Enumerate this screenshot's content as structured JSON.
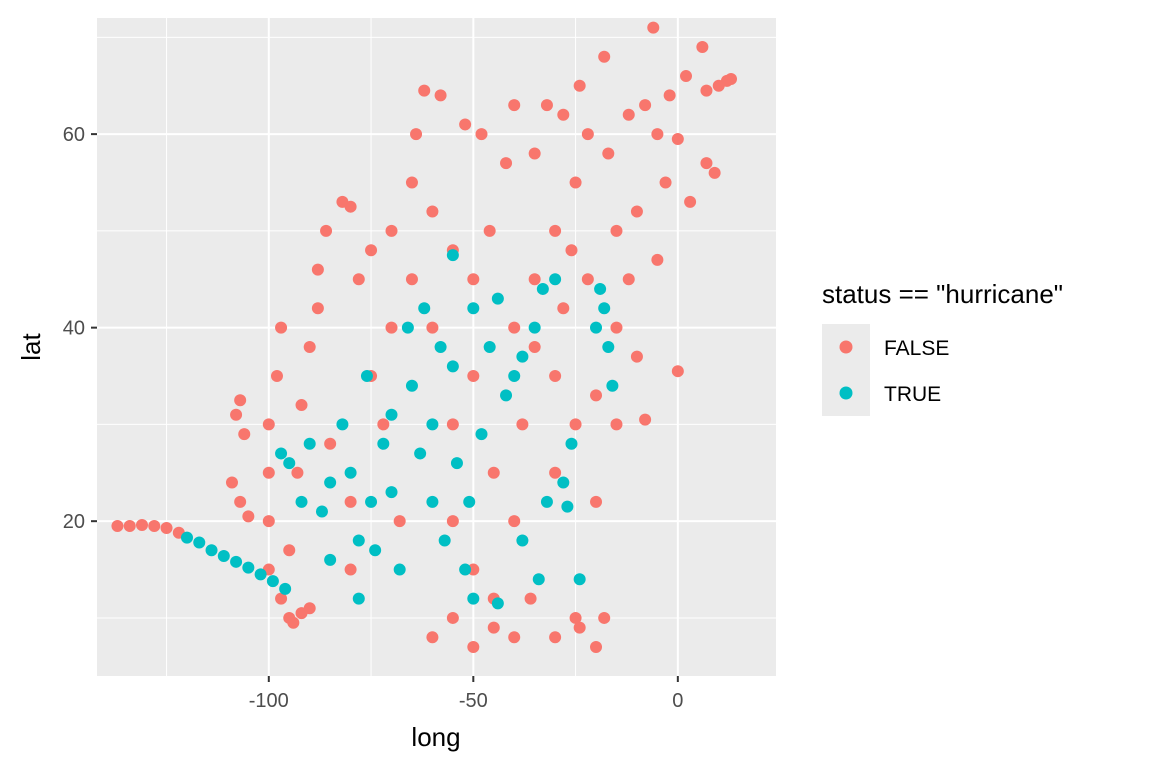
{
  "chart_data": {
    "type": "scatter",
    "title": "",
    "xlabel": "long",
    "ylabel": "lat",
    "xlim": [
      -142,
      24
    ],
    "ylim": [
      4,
      72
    ],
    "x_ticks": [
      -100,
      -50,
      0
    ],
    "x_tick_labels": [
      "-100",
      "-50",
      "0"
    ],
    "y_ticks": [
      20,
      40,
      60
    ],
    "y_tick_labels": [
      "20",
      "40",
      "60"
    ],
    "grid": true,
    "legend": {
      "title": "status == \"hurricane\"",
      "position": "right",
      "entries": [
        {
          "label": "FALSE",
          "color": "#F8766D"
        },
        {
          "label": "TRUE",
          "color": "#00BFC4"
        }
      ]
    },
    "series": [
      {
        "name": "FALSE",
        "color": "#F8766D",
        "points": [
          [
            -137,
            19.5
          ],
          [
            -134,
            19.5
          ],
          [
            -131,
            19.6
          ],
          [
            -128,
            19.5
          ],
          [
            -125,
            19.3
          ],
          [
            -122,
            18.8
          ],
          [
            -107,
            32.5
          ],
          [
            -108,
            31
          ],
          [
            -106,
            29
          ],
          [
            -109,
            24
          ],
          [
            -107,
            22
          ],
          [
            -105,
            20.5
          ],
          [
            -94,
            9.5
          ],
          [
            -92,
            10.5
          ],
          [
            -90,
            11
          ],
          [
            -97,
            12
          ],
          [
            -95,
            10
          ],
          [
            -100,
            30
          ],
          [
            -100,
            25
          ],
          [
            -100,
            20
          ],
          [
            -100,
            15
          ],
          [
            -98,
            35
          ],
          [
            -97,
            40
          ],
          [
            -95,
            17
          ],
          [
            -93,
            25
          ],
          [
            -92,
            32
          ],
          [
            -90,
            38
          ],
          [
            -88,
            42
          ],
          [
            -88,
            46
          ],
          [
            -86,
            50
          ],
          [
            -82,
            53
          ],
          [
            -80,
            52.5
          ],
          [
            -80,
            22
          ],
          [
            -80,
            15
          ],
          [
            -78,
            45
          ],
          [
            -75,
            48
          ],
          [
            -72,
            30
          ],
          [
            -70,
            50
          ],
          [
            -70,
            40
          ],
          [
            -68,
            20
          ],
          [
            -65,
            55
          ],
          [
            -64,
            60
          ],
          [
            -62,
            64.5
          ],
          [
            -60,
            52
          ],
          [
            -58,
            64
          ],
          [
            -55,
            48
          ],
          [
            -55,
            30
          ],
          [
            -55,
            20
          ],
          [
            -55,
            10
          ],
          [
            -52,
            61
          ],
          [
            -50,
            45
          ],
          [
            -50,
            35
          ],
          [
            -50,
            15
          ],
          [
            -48,
            60
          ],
          [
            -46,
            50
          ],
          [
            -45,
            25
          ],
          [
            -45,
            12
          ],
          [
            -45,
            9
          ],
          [
            -42,
            57
          ],
          [
            -40,
            63
          ],
          [
            -40,
            40
          ],
          [
            -40,
            20
          ],
          [
            -38,
            30
          ],
          [
            -36,
            12
          ],
          [
            -35,
            58
          ],
          [
            -35,
            45
          ],
          [
            -32,
            63
          ],
          [
            -30,
            50
          ],
          [
            -30,
            35
          ],
          [
            -30,
            25
          ],
          [
            -28,
            62
          ],
          [
            -28,
            42
          ],
          [
            -25,
            55
          ],
          [
            -25,
            30
          ],
          [
            -25,
            10
          ],
          [
            -24,
            65
          ],
          [
            -22,
            60
          ],
          [
            -22,
            45
          ],
          [
            -20,
            33
          ],
          [
            -20,
            22
          ],
          [
            -18,
            68
          ],
          [
            -18,
            10
          ],
          [
            -17,
            58
          ],
          [
            -15,
            50
          ],
          [
            -15,
            40
          ],
          [
            -15,
            30
          ],
          [
            -12,
            62
          ],
          [
            -12,
            45
          ],
          [
            -10,
            52
          ],
          [
            -10,
            37
          ],
          [
            -8,
            63
          ],
          [
            -8,
            30.5
          ],
          [
            -6,
            71
          ],
          [
            -5,
            60
          ],
          [
            -5,
            47
          ],
          [
            -3,
            55
          ],
          [
            -2,
            64
          ],
          [
            0,
            59.5
          ],
          [
            0,
            35.5
          ],
          [
            2,
            66
          ],
          [
            3,
            53
          ],
          [
            6,
            69
          ],
          [
            7,
            64.5
          ],
          [
            7,
            57
          ],
          [
            9,
            56
          ],
          [
            10,
            65
          ],
          [
            12,
            65.5
          ],
          [
            13,
            65.7
          ],
          [
            -60,
            8
          ],
          [
            -50,
            7
          ],
          [
            -40,
            8
          ],
          [
            -30,
            8
          ],
          [
            -20,
            7
          ],
          [
            -24,
            9
          ],
          [
            -60,
            40
          ],
          [
            -65,
            45
          ],
          [
            -75,
            35
          ],
          [
            -85,
            28
          ],
          [
            -35,
            38
          ],
          [
            -26,
            48
          ]
        ]
      },
      {
        "name": "TRUE",
        "color": "#00BFC4",
        "points": [
          [
            -120,
            18.3
          ],
          [
            -117,
            17.8
          ],
          [
            -114,
            17
          ],
          [
            -111,
            16.4
          ],
          [
            -108,
            15.8
          ],
          [
            -105,
            15.2
          ],
          [
            -102,
            14.5
          ],
          [
            -99,
            13.8
          ],
          [
            -96,
            13
          ],
          [
            -97,
            27
          ],
          [
            -95,
            26
          ],
          [
            -92,
            22
          ],
          [
            -90,
            28
          ],
          [
            -87,
            21
          ],
          [
            -85,
            24
          ],
          [
            -85,
            16
          ],
          [
            -82,
            30
          ],
          [
            -80,
            25
          ],
          [
            -78,
            18
          ],
          [
            -78,
            12
          ],
          [
            -76,
            35
          ],
          [
            -75,
            22
          ],
          [
            -74,
            17
          ],
          [
            -72,
            28
          ],
          [
            -70,
            31
          ],
          [
            -70,
            23
          ],
          [
            -68,
            15
          ],
          [
            -66,
            40
          ],
          [
            -65,
            34
          ],
          [
            -63,
            27
          ],
          [
            -62,
            42
          ],
          [
            -60,
            30
          ],
          [
            -60,
            22
          ],
          [
            -58,
            38
          ],
          [
            -57,
            18
          ],
          [
            -55,
            47.5
          ],
          [
            -55,
            36
          ],
          [
            -54,
            26
          ],
          [
            -52,
            15
          ],
          [
            -51,
            22
          ],
          [
            -50,
            42
          ],
          [
            -50,
            12
          ],
          [
            -48,
            29
          ],
          [
            -46,
            38
          ],
          [
            -44,
            11.5
          ],
          [
            -44,
            43
          ],
          [
            -42,
            33
          ],
          [
            -40,
            35
          ],
          [
            -38,
            37
          ],
          [
            -38,
            18
          ],
          [
            -35,
            40
          ],
          [
            -34,
            14
          ],
          [
            -33,
            44
          ],
          [
            -32,
            22
          ],
          [
            -30,
            45
          ],
          [
            -28,
            24
          ],
          [
            -27,
            21.5
          ],
          [
            -26,
            28
          ],
          [
            -24,
            14
          ],
          [
            -20,
            40
          ],
          [
            -18,
            42
          ],
          [
            -17,
            38
          ],
          [
            -16,
            34
          ],
          [
            -19,
            44
          ]
        ]
      }
    ]
  }
}
